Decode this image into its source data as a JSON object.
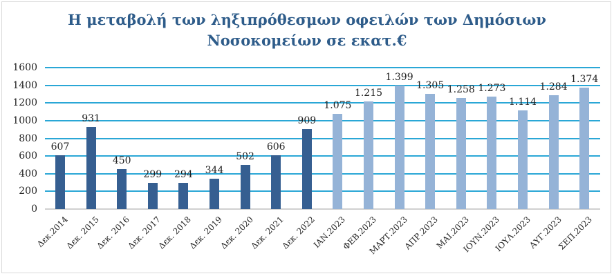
{
  "chart_data": {
    "type": "bar",
    "title": "Η μεταβολή των ληξιπρόθεσμων οφειλών των Δημόσιων Νοσοκομείων σε εκατ.€",
    "title_lines": [
      "Η μεταβολή των ληξιπρόθεσμων οφειλών των Δημόσιων",
      "Νοσοκομείων σε εκατ.€"
    ],
    "xlabel": "",
    "ylabel": "",
    "ylim": [
      0,
      1600
    ],
    "yticks": [
      0,
      200,
      400,
      600,
      800,
      1000,
      1200,
      1400,
      1600
    ],
    "grid": true,
    "legend": null,
    "categories": [
      "Δεκ.2014",
      "Δεκ. 2015",
      "Δεκ. 2016",
      "Δεκ. 2017",
      "Δεκ. 2018",
      "Δεκ. 2019",
      "Δεκ. 2020",
      "Δεκ. 2021",
      "Δεκ. 2022",
      "ΙΑΝ.2023",
      "ΦΕΒ.2023",
      "ΜΑΡΤ.2023",
      "ΑΠΡ.2023",
      "ΜΑΙ.2023",
      "ΙΟΥΝ.2023",
      "ΙΟΥΛ.2023",
      "ΑΥΓ.2023",
      "ΣΕΠ.2023"
    ],
    "values": [
      607,
      931,
      450,
      299,
      294,
      344,
      502,
      606,
      909,
      1075,
      1215,
      1399,
      1305,
      1258,
      1273,
      1114,
      1284,
      1374
    ],
    "value_labels": [
      "607",
      "931",
      "450",
      "299",
      "294",
      "344",
      "502",
      "606",
      "909",
      "1.075",
      "1.215",
      "1.399",
      "1.305",
      "1.258",
      "1.273",
      "1.114",
      "1.284",
      "1.374"
    ],
    "bar_groups": [
      "annual",
      "annual",
      "annual",
      "annual",
      "annual",
      "annual",
      "annual",
      "annual",
      "annual",
      "monthly",
      "monthly",
      "monthly",
      "monthly",
      "monthly",
      "monthly",
      "monthly",
      "monthly",
      "monthly"
    ]
  },
  "colors": {
    "annual_bar": "#365f91",
    "monthly_bar": "#95b3d7",
    "gridline": "#2aa7d6",
    "title": "#2e5c8a"
  }
}
